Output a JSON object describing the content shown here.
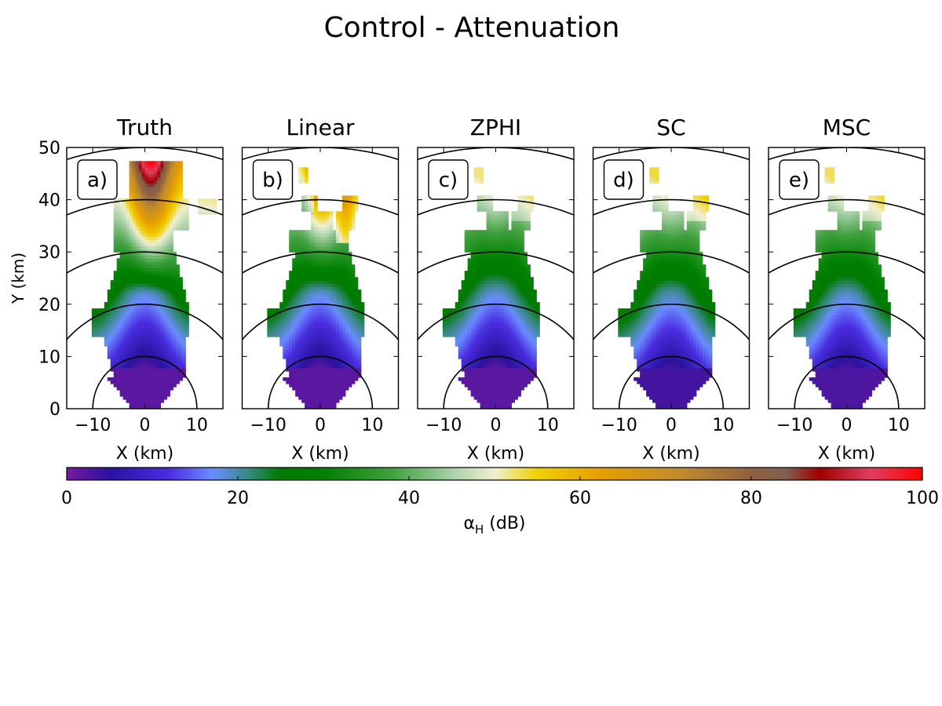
{
  "figure": {
    "title": "Control - Attenuation"
  },
  "chart_data": {
    "type": "heatmap",
    "shared": {
      "xlabel": "X (km)",
      "ylabel": "Y (km)",
      "xlim": [
        -15,
        15
      ],
      "ylim": [
        0,
        50
      ],
      "xticks": [
        -10,
        0,
        10
      ],
      "yticks": [
        0,
        10,
        20,
        30,
        40,
        50
      ],
      "range_rings_km": [
        10,
        20,
        30,
        40,
        50
      ]
    },
    "panels": [
      {
        "id": "truth",
        "title": "Truth",
        "tag": "a)",
        "variant": "truth"
      },
      {
        "id": "linear",
        "title": "Linear",
        "tag": "b)",
        "variant": "linear"
      },
      {
        "id": "zphi",
        "title": "ZPHI",
        "tag": "c)",
        "variant": "zphi"
      },
      {
        "id": "sc",
        "title": "SC",
        "tag": "d)",
        "variant": "sc"
      },
      {
        "id": "msc",
        "title": "MSC",
        "tag": "e)",
        "variant": "msc"
      }
    ],
    "colorbar": {
      "label_main": "α",
      "label_sub": "H",
      "label_unit": " (dB)",
      "range": [
        0,
        100
      ],
      "ticks": [
        0,
        20,
        40,
        60,
        80,
        100
      ],
      "stops": [
        {
          "v": 0,
          "color": "#7a1aa0"
        },
        {
          "v": 5,
          "color": "#2a12a0"
        },
        {
          "v": 12,
          "color": "#4a2ee0"
        },
        {
          "v": 17,
          "color": "#6a8cff"
        },
        {
          "v": 21,
          "color": "#3a8a8a"
        },
        {
          "v": 25,
          "color": "#007a00"
        },
        {
          "v": 30,
          "color": "#008000"
        },
        {
          "v": 38,
          "color": "#40a040"
        },
        {
          "v": 45,
          "color": "#a8d0a8"
        },
        {
          "v": 50,
          "color": "#f0f0d0"
        },
        {
          "v": 55,
          "color": "#f0d000"
        },
        {
          "v": 62,
          "color": "#e8a000"
        },
        {
          "v": 72,
          "color": "#c08a30"
        },
        {
          "v": 80,
          "color": "#906040"
        },
        {
          "v": 84,
          "color": "#806050"
        },
        {
          "v": 88,
          "color": "#a00000"
        },
        {
          "v": 94,
          "color": "#e04060"
        },
        {
          "v": 100,
          "color": "#ff0000"
        }
      ]
    }
  }
}
